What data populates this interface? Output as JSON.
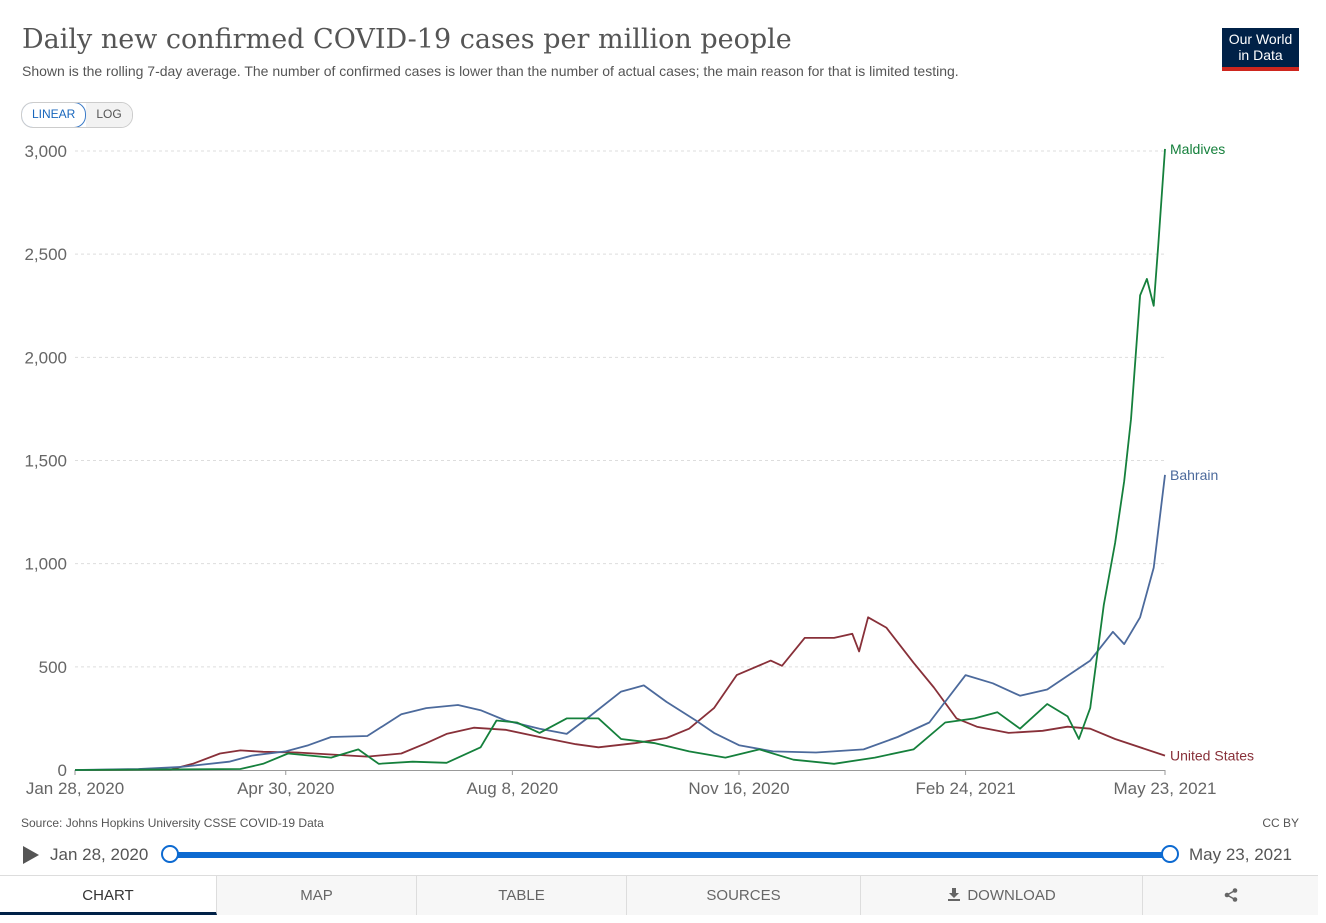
{
  "title": "Daily new confirmed COVID-19 cases per million people",
  "subtitle": "Shown is the rolling 7-day average. The number of confirmed cases is lower than the number of actual cases; the main reason for that is limited testing.",
  "logo": {
    "line1": "Our World",
    "line2": "in Data"
  },
  "scale_toggle": {
    "linear": "LINEAR",
    "log": "LOG",
    "selected": "LINEAR"
  },
  "source": "Source: Johns Hopkins University CSSE COVID-19 Data",
  "license": "CC BY",
  "timeline": {
    "start": "Jan 28, 2020",
    "end": "May 23, 2021"
  },
  "tabs": [
    {
      "label": "CHART",
      "icon": ""
    },
    {
      "label": "MAP",
      "icon": ""
    },
    {
      "label": "TABLE",
      "icon": ""
    },
    {
      "label": "SOURCES",
      "icon": ""
    },
    {
      "label": "DOWNLOAD",
      "icon": "download-icon"
    },
    {
      "label": "",
      "icon": "share-icon"
    }
  ],
  "chart_data": {
    "type": "line",
    "x_axis": {
      "type": "date",
      "min": "2020-01-28",
      "max": "2021-05-23",
      "ticks": [
        "Jan 28, 2020",
        "Apr 30, 2020",
        "Aug 8, 2020",
        "Nov 16, 2020",
        "Feb 24, 2021",
        "May 23, 2021"
      ]
    },
    "y_axis": {
      "min": 0,
      "max": 3000,
      "ticks": [
        0,
        500,
        1000,
        1500,
        2000,
        2500,
        3000
      ],
      "tick_labels": [
        "0",
        "500",
        "1,000",
        "1,500",
        "2,000",
        "2,500",
        "3,000"
      ]
    },
    "grid": "horizontal dashed",
    "legend": "line-end labels",
    "series": [
      {
        "name": "United States",
        "color": "#883039",
        "points": [
          [
            "2020-01-28",
            0
          ],
          [
            "2020-03-10",
            2
          ],
          [
            "2020-03-20",
            30
          ],
          [
            "2020-04-01",
            80
          ],
          [
            "2020-04-10",
            95
          ],
          [
            "2020-04-20",
            88
          ],
          [
            "2020-05-05",
            85
          ],
          [
            "2020-05-20",
            75
          ],
          [
            "2020-06-05",
            65
          ],
          [
            "2020-06-20",
            80
          ],
          [
            "2020-07-01",
            130
          ],
          [
            "2020-07-10",
            175
          ],
          [
            "2020-07-22",
            205
          ],
          [
            "2020-08-05",
            195
          ],
          [
            "2020-08-20",
            160
          ],
          [
            "2020-09-05",
            125
          ],
          [
            "2020-09-15",
            110
          ],
          [
            "2020-10-01",
            130
          ],
          [
            "2020-10-15",
            155
          ],
          [
            "2020-10-25",
            200
          ],
          [
            "2020-11-05",
            300
          ],
          [
            "2020-11-15",
            460
          ],
          [
            "2020-11-30",
            530
          ],
          [
            "2020-12-05",
            505
          ],
          [
            "2020-12-15",
            640
          ],
          [
            "2020-12-28",
            640
          ],
          [
            "2021-01-05",
            660
          ],
          [
            "2021-01-08",
            575
          ],
          [
            "2021-01-12",
            740
          ],
          [
            "2021-01-20",
            690
          ],
          [
            "2021-02-01",
            520
          ],
          [
            "2021-02-10",
            400
          ],
          [
            "2021-02-20",
            250
          ],
          [
            "2021-03-01",
            210
          ],
          [
            "2021-03-15",
            180
          ],
          [
            "2021-03-30",
            190
          ],
          [
            "2021-04-10",
            210
          ],
          [
            "2021-04-20",
            200
          ],
          [
            "2021-05-01",
            150
          ],
          [
            "2021-05-23",
            70
          ]
        ]
      },
      {
        "name": "Bahrain",
        "color": "#4c6a9c",
        "points": [
          [
            "2020-01-28",
            0
          ],
          [
            "2020-02-25",
            5
          ],
          [
            "2020-03-15",
            15
          ],
          [
            "2020-04-05",
            40
          ],
          [
            "2020-04-15",
            70
          ],
          [
            "2020-04-30",
            90
          ],
          [
            "2020-05-10",
            120
          ],
          [
            "2020-05-20",
            160
          ],
          [
            "2020-06-05",
            165
          ],
          [
            "2020-06-20",
            270
          ],
          [
            "2020-07-01",
            300
          ],
          [
            "2020-07-15",
            315
          ],
          [
            "2020-07-25",
            290
          ],
          [
            "2020-08-05",
            240
          ],
          [
            "2020-08-20",
            200
          ],
          [
            "2020-09-01",
            175
          ],
          [
            "2020-09-10",
            250
          ],
          [
            "2020-09-25",
            380
          ],
          [
            "2020-10-05",
            410
          ],
          [
            "2020-10-15",
            330
          ],
          [
            "2020-10-28",
            240
          ],
          [
            "2020-11-05",
            180
          ],
          [
            "2020-11-16",
            120
          ],
          [
            "2020-12-01",
            90
          ],
          [
            "2020-12-20",
            85
          ],
          [
            "2021-01-10",
            100
          ],
          [
            "2021-01-25",
            160
          ],
          [
            "2021-02-08",
            230
          ],
          [
            "2021-02-24",
            460
          ],
          [
            "2021-03-08",
            420
          ],
          [
            "2021-03-20",
            360
          ],
          [
            "2021-04-01",
            390
          ],
          [
            "2021-04-20",
            530
          ],
          [
            "2021-04-30",
            670
          ],
          [
            "2021-05-05",
            610
          ],
          [
            "2021-05-12",
            740
          ],
          [
            "2021-05-18",
            980
          ],
          [
            "2021-05-23",
            1430
          ]
        ]
      },
      {
        "name": "Maldives",
        "color": "#15803c",
        "points": [
          [
            "2020-01-28",
            0
          ],
          [
            "2020-04-10",
            5
          ],
          [
            "2020-04-20",
            30
          ],
          [
            "2020-05-01",
            80
          ],
          [
            "2020-05-20",
            60
          ],
          [
            "2020-06-01",
            100
          ],
          [
            "2020-06-10",
            30
          ],
          [
            "2020-06-25",
            40
          ],
          [
            "2020-07-10",
            35
          ],
          [
            "2020-07-25",
            110
          ],
          [
            "2020-08-01",
            240
          ],
          [
            "2020-08-10",
            230
          ],
          [
            "2020-08-20",
            180
          ],
          [
            "2020-09-01",
            250
          ],
          [
            "2020-09-15",
            250
          ],
          [
            "2020-09-25",
            150
          ],
          [
            "2020-10-10",
            130
          ],
          [
            "2020-10-25",
            90
          ],
          [
            "2020-11-10",
            60
          ],
          [
            "2020-11-25",
            100
          ],
          [
            "2020-12-10",
            50
          ],
          [
            "2020-12-28",
            30
          ],
          [
            "2021-01-15",
            60
          ],
          [
            "2021-02-01",
            100
          ],
          [
            "2021-02-15",
            230
          ],
          [
            "2021-02-28",
            250
          ],
          [
            "2021-03-10",
            280
          ],
          [
            "2021-03-20",
            200
          ],
          [
            "2021-04-01",
            320
          ],
          [
            "2021-04-10",
            260
          ],
          [
            "2021-04-15",
            150
          ],
          [
            "2021-04-20",
            300
          ],
          [
            "2021-04-26",
            800
          ],
          [
            "2021-05-01",
            1100
          ],
          [
            "2021-05-05",
            1400
          ],
          [
            "2021-05-08",
            1700
          ],
          [
            "2021-05-12",
            2300
          ],
          [
            "2021-05-15",
            2380
          ],
          [
            "2021-05-18",
            2250
          ],
          [
            "2021-05-20",
            2540
          ],
          [
            "2021-05-23",
            3010
          ]
        ]
      }
    ]
  }
}
